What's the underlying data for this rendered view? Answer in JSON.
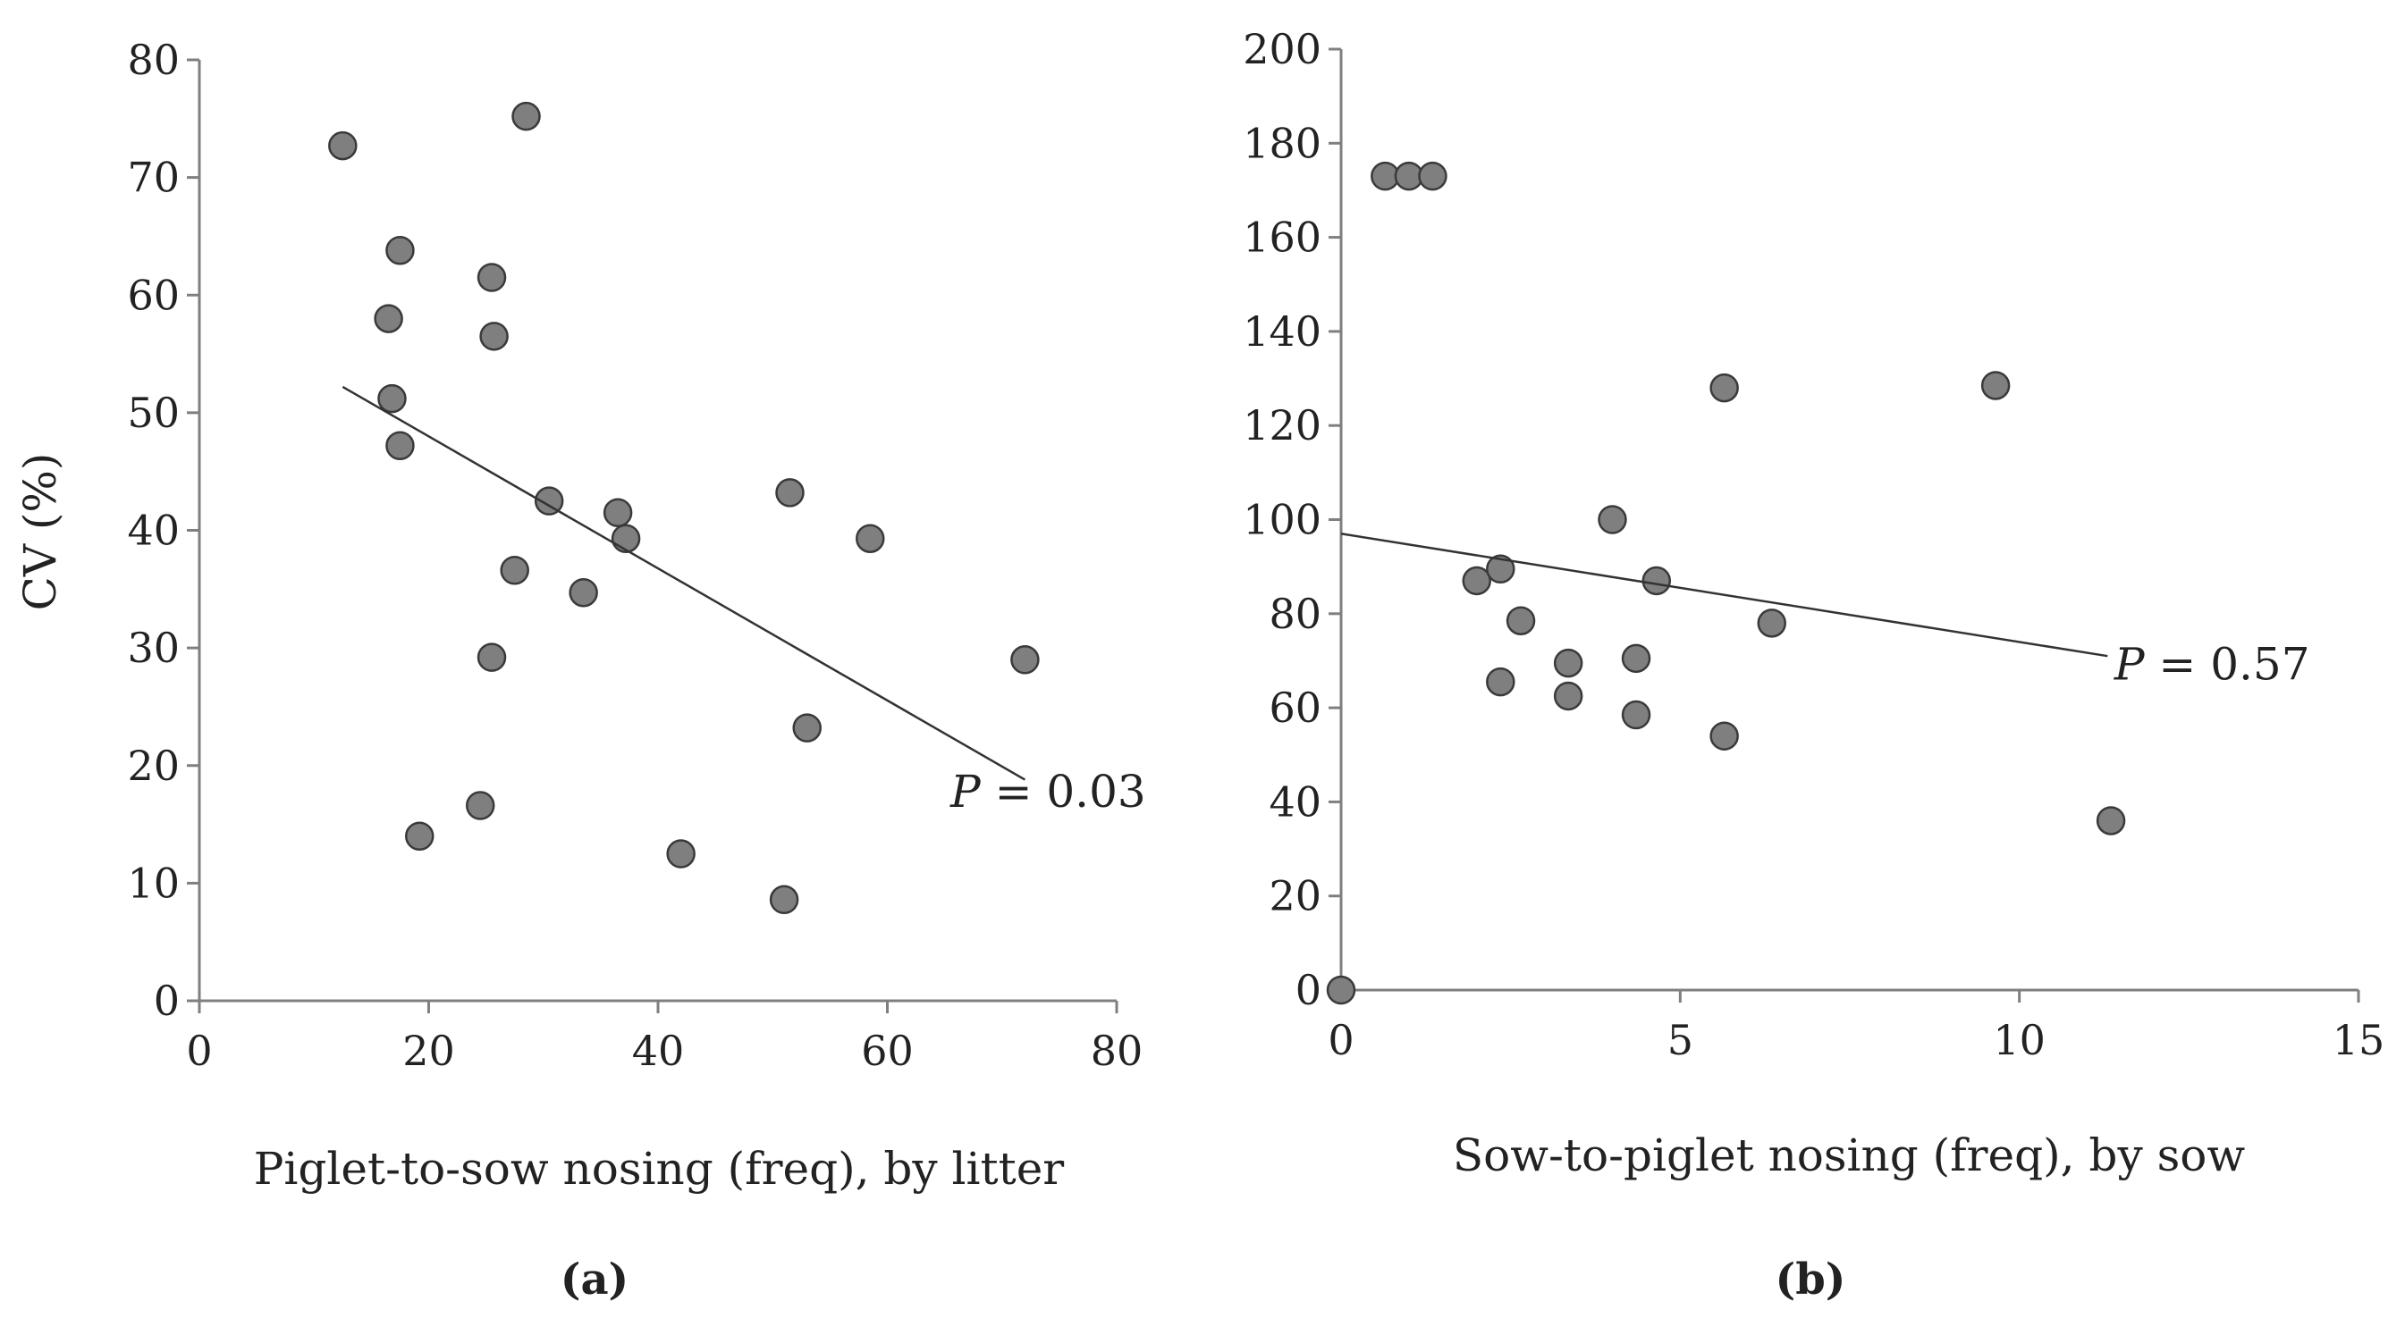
{
  "chart_data": [
    {
      "type": "scatter",
      "panel_label": "(a)",
      "title": "",
      "xlabel": "Piglet-to-sow  nosing  (freq), by litter",
      "ylabel": "CV (%)",
      "xlim": [
        0,
        80
      ],
      "ylim": [
        0,
        80
      ],
      "x_ticks": [
        0,
        20,
        40,
        60,
        80
      ],
      "y_ticks": [
        0,
        10,
        20,
        30,
        40,
        50,
        60,
        70,
        80
      ],
      "x_tick_labels": [
        "0",
        "20",
        "40",
        "60",
        "80"
      ],
      "y_tick_labels": [
        "0",
        "10",
        "20",
        "30",
        "40",
        "50",
        "60",
        "70",
        "80"
      ],
      "grid": false,
      "marker_color": "#7f7f7f",
      "points": [
        [
          12.5,
          72.7
        ],
        [
          28.5,
          75.2
        ],
        [
          17.5,
          63.8
        ],
        [
          16.5,
          58.0
        ],
        [
          25.5,
          61.5
        ],
        [
          25.7,
          56.5
        ],
        [
          16.8,
          51.2
        ],
        [
          17.5,
          47.2
        ],
        [
          30.5,
          42.5
        ],
        [
          36.5,
          41.5
        ],
        [
          37.2,
          39.3
        ],
        [
          51.5,
          43.2
        ],
        [
          58.5,
          39.3
        ],
        [
          27.5,
          36.6
        ],
        [
          33.5,
          34.7
        ],
        [
          25.5,
          29.2
        ],
        [
          72.0,
          29.0
        ],
        [
          53.0,
          23.2
        ],
        [
          24.5,
          16.6
        ],
        [
          19.2,
          14.0
        ],
        [
          42.0,
          12.5
        ],
        [
          51.0,
          8.6
        ]
      ],
      "trendline": {
        "x": [
          12.5,
          72.0
        ],
        "y": [
          52.2,
          18.8
        ]
      },
      "annotation": {
        "italic": "P",
        "rest": " = 0.03",
        "x": 65.5,
        "y": 16.5
      }
    },
    {
      "type": "scatter",
      "panel_label": "(b)",
      "title": "",
      "xlabel": "Sow-to-piglet  nosing  (freq), by sow",
      "ylabel": "",
      "xlim": [
        0,
        15
      ],
      "ylim": [
        0,
        200
      ],
      "x_ticks": [
        0,
        5,
        10,
        15
      ],
      "y_ticks": [
        0,
        20,
        40,
        60,
        80,
        100,
        120,
        140,
        160,
        180,
        200
      ],
      "x_tick_labels": [
        "0",
        "5",
        "10",
        "15"
      ],
      "y_tick_labels": [
        "0",
        "20",
        "40",
        "60",
        "80",
        "100",
        "120",
        "140",
        "160",
        "180",
        "200"
      ],
      "grid": false,
      "marker_color": "#7f7f7f",
      "points": [
        [
          0.65,
          173.0
        ],
        [
          1.0,
          173.0
        ],
        [
          1.35,
          173.0
        ],
        [
          5.65,
          128.0
        ],
        [
          9.65,
          128.5
        ],
        [
          4.0,
          100.0
        ],
        [
          2.0,
          87.0
        ],
        [
          2.35,
          89.5
        ],
        [
          4.65,
          87.0
        ],
        [
          2.65,
          78.5
        ],
        [
          6.35,
          78.0
        ],
        [
          3.35,
          69.5
        ],
        [
          4.35,
          70.5
        ],
        [
          2.35,
          65.5
        ],
        [
          3.35,
          62.5
        ],
        [
          4.35,
          58.5
        ],
        [
          5.65,
          54.0
        ],
        [
          11.35,
          36.0
        ],
        [
          0.0,
          0.0
        ]
      ],
      "trendline": {
        "x": [
          0.0,
          11.3
        ],
        "y": [
          97.0,
          71.0
        ]
      },
      "annotation": {
        "italic": "P",
        "rest": " = 0.57",
        "x": 11.4,
        "y": 66.0
      }
    }
  ]
}
